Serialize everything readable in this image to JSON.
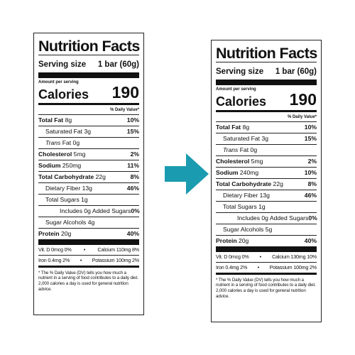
{
  "left": {
    "title": "Nutrition Facts",
    "serving_label": "Serving size",
    "serving_value": "1 bar (60g)",
    "amount_per_serving": "Amount per serving",
    "calories_label": "Calories",
    "calories_value": "190",
    "dv_header": "% Daily Value*",
    "rows": {
      "total_fat": {
        "label": "Total Fat",
        "amount": "8g",
        "pct": "10%"
      },
      "sat_fat": {
        "label": "Saturated Fat",
        "amount": "3g",
        "pct": "15%"
      },
      "trans_fat": {
        "label": "Trans",
        "rest": "Fat 0g"
      },
      "cholesterol": {
        "label": "Cholesterol",
        "amount": "5mg",
        "pct": "2%"
      },
      "sodium": {
        "label": "Sodium",
        "amount": "250mg",
        "pct": "11%"
      },
      "carbs": {
        "label": "Total Carbohydrate",
        "amount": "22g",
        "pct": "8%"
      },
      "fiber": {
        "label": "Dietary Fiber 13g",
        "pct": "46%"
      },
      "sugars": {
        "label": "Total Sugars 1g"
      },
      "added_sugars": {
        "label": "Includes 0g Added Sugars",
        "pct": "0%"
      },
      "sugar_alcohols": {
        "label": "Sugar Alcohols 4g"
      },
      "protein": {
        "label": "Protein",
        "amount": "20g",
        "pct": "40%"
      }
    },
    "micros": {
      "vitd": "Vit. D 0mcg 0%",
      "calcium": "Calcium 110mg 8%",
      "iron": "Iron 0.4mg 2%",
      "potassium": "Potassium 100mg 2%"
    },
    "footnote": "* The % Daily Value (DV) tells you how much a nutrient in a serving of food contributes to a daily diet. 2,000 calories a day is used for general nutrition advice."
  },
  "right": {
    "title": "Nutrition Facts",
    "serving_label": "Serving size",
    "serving_value": "1 bar (60g)",
    "amount_per_serving": "Amount per serving",
    "calories_label": "Calories",
    "calories_value": "190",
    "dv_header": "% Daily Value*",
    "rows": {
      "total_fat": {
        "label": "Total Fat",
        "amount": "8g",
        "pct": "10%"
      },
      "sat_fat": {
        "label": "Saturated Fat",
        "amount": "3g",
        "pct": "15%"
      },
      "trans_fat": {
        "label": "Trans",
        "rest": "Fat 0g"
      },
      "cholesterol": {
        "label": "Cholesterol",
        "amount": "5mg",
        "pct": "2%"
      },
      "sodium": {
        "label": "Sodium",
        "amount": "240mg",
        "pct": "10%"
      },
      "carbs": {
        "label": "Total Carbohydrate",
        "amount": "22g",
        "pct": "8%"
      },
      "fiber": {
        "label": "Dietary Fiber 13g",
        "pct": "46%"
      },
      "sugars": {
        "label": "Total Sugars 1g"
      },
      "added_sugars": {
        "label": "Includes 0g Added Sugars",
        "pct": "0%"
      },
      "sugar_alcohols": {
        "label": "Sugar Alcohols 5g"
      },
      "protein": {
        "label": "Protein",
        "amount": "20g",
        "pct": "40%"
      }
    },
    "micros": {
      "vitd": "Vit. D 0mcg 0%",
      "calcium": "Calcium 130mg 10%",
      "iron": "Iron 0.4mg 2%",
      "potassium": "Potassium 100mg 2%"
    },
    "footnote": "* The % Daily Value (DV) tells you how much a nutrient in a serving of food contributes to a daily diet. 2,000 calories a day is used for general nutrition advice."
  },
  "arrow": {
    "icon": "arrow-right-icon",
    "color": "#1a9bb0"
  }
}
